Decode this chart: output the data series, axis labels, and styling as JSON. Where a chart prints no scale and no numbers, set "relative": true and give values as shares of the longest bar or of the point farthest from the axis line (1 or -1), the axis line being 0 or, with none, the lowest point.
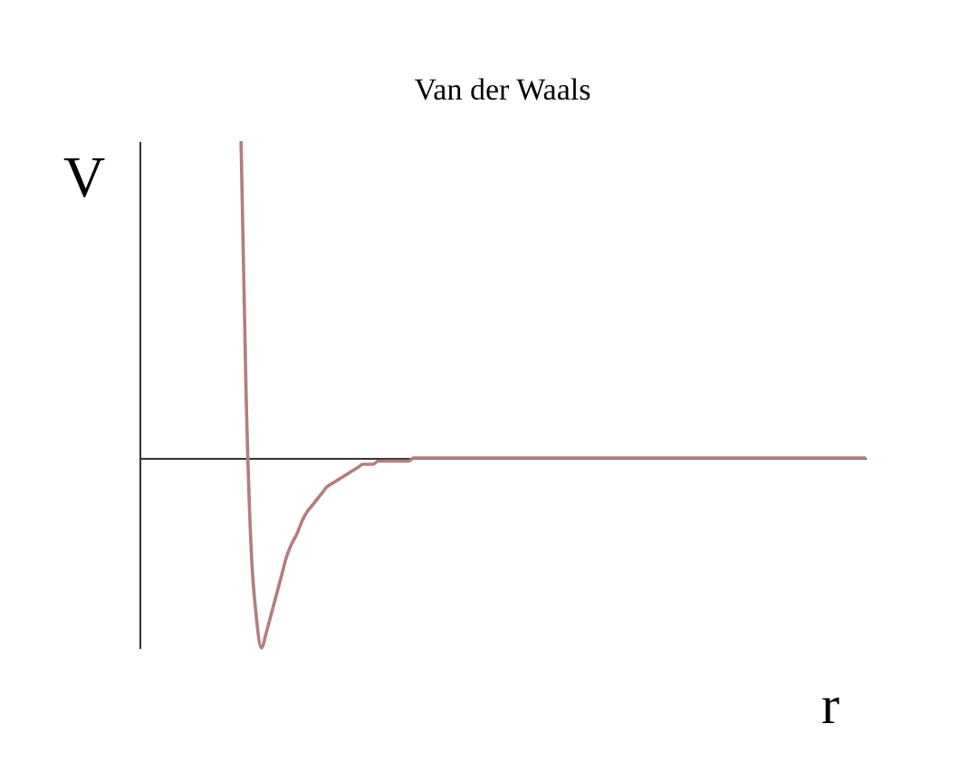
{
  "chart_data": {
    "type": "line",
    "title": "Van der Waals",
    "xlabel": "r",
    "ylabel": "V",
    "relative": true,
    "categories": [
      null,
      null,
      null,
      null,
      null,
      null,
      null,
      null,
      null,
      null,
      null,
      null,
      null,
      null,
      null,
      null,
      null,
      null,
      null,
      null,
      null,
      null,
      null,
      null,
      null,
      null,
      null,
      null,
      null,
      null,
      null,
      null,
      null,
      null,
      null,
      null,
      null,
      null,
      null,
      null,
      null,
      null,
      null,
      null,
      null,
      null,
      null,
      null,
      null,
      null,
      null,
      null,
      null,
      null,
      null,
      null,
      null,
      null,
      null,
      null,
      null,
      null,
      null,
      null,
      null,
      null,
      null,
      null,
      null,
      null,
      null,
      null,
      null,
      null,
      null,
      null,
      null,
      null,
      null,
      null,
      null,
      null,
      null,
      null,
      null,
      null,
      null,
      null,
      null,
      null,
      null,
      null,
      null,
      null,
      null,
      null,
      null,
      null,
      null,
      null,
      null,
      null,
      null,
      null,
      null,
      null,
      null,
      null,
      null,
      null,
      null,
      null,
      null,
      null,
      null,
      null,
      null,
      null,
      null,
      null,
      null,
      null,
      null,
      null,
      null,
      null,
      null,
      null,
      null,
      null,
      null,
      null,
      null,
      null,
      null,
      null,
      null,
      null,
      null,
      null,
      null,
      null,
      null,
      null
    ],
    "series": [
      {
        "color": "#b37d80",
        "values": [
          null,
          null,
          null,
          null,
          null,
          null,
          null,
          null,
          null,
          null,
          null,
          null,
          null,
          null,
          null,
          null,
          null,
          null,
          null,
          null,
          1,
          0.2,
          -0.29,
          -0.5,
          -0.6,
          -0.55,
          -0.49,
          -0.43,
          -0.37,
          -0.31,
          -0.27,
          -0.24,
          -0.2,
          -0.17,
          -0.15,
          -0.13,
          -0.11,
          -0.09,
          -0.08,
          -0.07,
          -0.06,
          -0.05,
          -0.04,
          -0.03,
          -0.02,
          -0.02,
          -0.02,
          -0.01,
          -0.01,
          -0.01,
          -0.01,
          -0.01,
          -0.01,
          -0.01,
          0,
          0,
          0,
          0,
          0,
          0,
          0,
          0,
          0,
          0,
          0,
          0,
          0,
          0,
          0,
          0,
          0,
          0,
          0,
          0,
          0,
          0,
          0,
          0,
          0,
          0,
          0,
          0,
          0,
          0,
          0,
          0,
          0,
          0,
          0,
          0,
          0,
          0,
          0,
          0,
          0,
          0,
          0,
          0,
          0,
          0,
          0,
          0,
          0,
          0,
          0,
          0,
          0,
          0,
          0,
          0,
          0,
          0,
          0,
          0,
          0,
          0,
          0,
          0,
          0,
          0,
          0,
          0,
          0,
          0,
          0,
          0,
          0,
          0,
          0,
          0,
          0,
          0,
          0,
          0,
          0,
          0,
          0,
          0,
          0,
          0,
          0,
          0,
          0,
          0
        ]
      }
    ]
  }
}
